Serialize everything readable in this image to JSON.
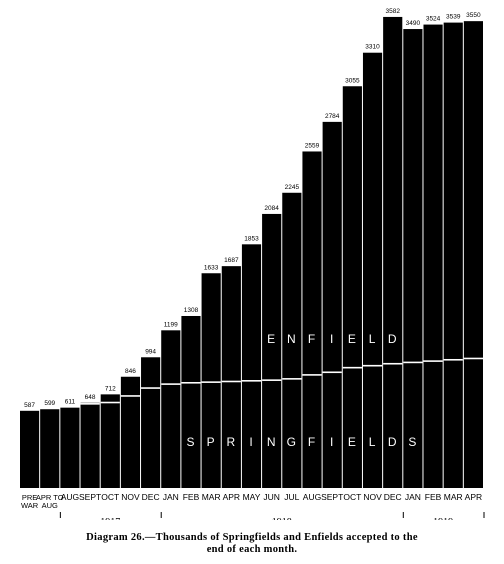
{
  "chart_data": {
    "type": "bar",
    "stacked": true,
    "categories": [
      "PRE WAR",
      "APR TO AUG",
      "AUG",
      "SEPT",
      "OCT",
      "NOV",
      "DEC",
      "JAN",
      "FEB",
      "MAR",
      "APR",
      "MAY",
      "JUN",
      "JUL",
      "AUG",
      "SEPT",
      "OCT",
      "NOV",
      "DEC",
      "JAN",
      "FEB",
      "MAR",
      "APR"
    ],
    "categories_display": [
      [
        "PRE",
        "WAR"
      ],
      [
        "APR TO",
        "AUG"
      ],
      [
        "AUG"
      ],
      [
        "SEPT"
      ],
      [
        "OCT"
      ],
      [
        "NOV"
      ],
      [
        "DEC"
      ],
      [
        "JAN"
      ],
      [
        "FEB"
      ],
      [
        "MAR"
      ],
      [
        "APR"
      ],
      [
        "MAY"
      ],
      [
        "JUN"
      ],
      [
        "JUL"
      ],
      [
        "AUG"
      ],
      [
        "SEPT"
      ],
      [
        "OCT"
      ],
      [
        "NOV"
      ],
      [
        "DEC"
      ],
      [
        "JAN"
      ],
      [
        "FEB"
      ],
      [
        "MAR"
      ],
      [
        "APR"
      ]
    ],
    "totals": [
      587,
      599,
      611,
      648,
      712,
      846,
      994,
      1199,
      1308,
      1633,
      1687,
      1853,
      2084,
      2245,
      2559,
      2784,
      3055,
      3310,
      3582,
      3490,
      3524,
      3539,
      3550
    ],
    "series": [
      {
        "name": "SPRINGFIELDS",
        "values": [
          587,
          599,
          611,
          640,
          650,
          700,
          760,
          790,
          800,
          805,
          810,
          815,
          820,
          830,
          860,
          880,
          915,
          930,
          945,
          955,
          965,
          975,
          985
        ]
      },
      {
        "name": "ENFIELDS",
        "values": [
          0,
          0,
          0,
          8,
          62,
          146,
          234,
          409,
          508,
          828,
          877,
          1038,
          1264,
          1415,
          1699,
          1904,
          2140,
          2380,
          2637,
          2535,
          2559,
          2564,
          2565
        ]
      }
    ],
    "year_labels": [
      {
        "label": "1917",
        "start": 2,
        "end": 6
      },
      {
        "label": "1918",
        "start": 7,
        "end": 18
      },
      {
        "label": "1919",
        "start": 19,
        "end": 22
      }
    ],
    "ylim": [
      0,
      3650
    ],
    "title": "",
    "xlabel": "",
    "ylabel": "",
    "bar_color": "#000000",
    "divider_color": "#ffffff"
  },
  "caption": {
    "line1": "Diagram 26.—Thousands of Springfields and Enfields accepted to the",
    "line2": "end of each month."
  }
}
